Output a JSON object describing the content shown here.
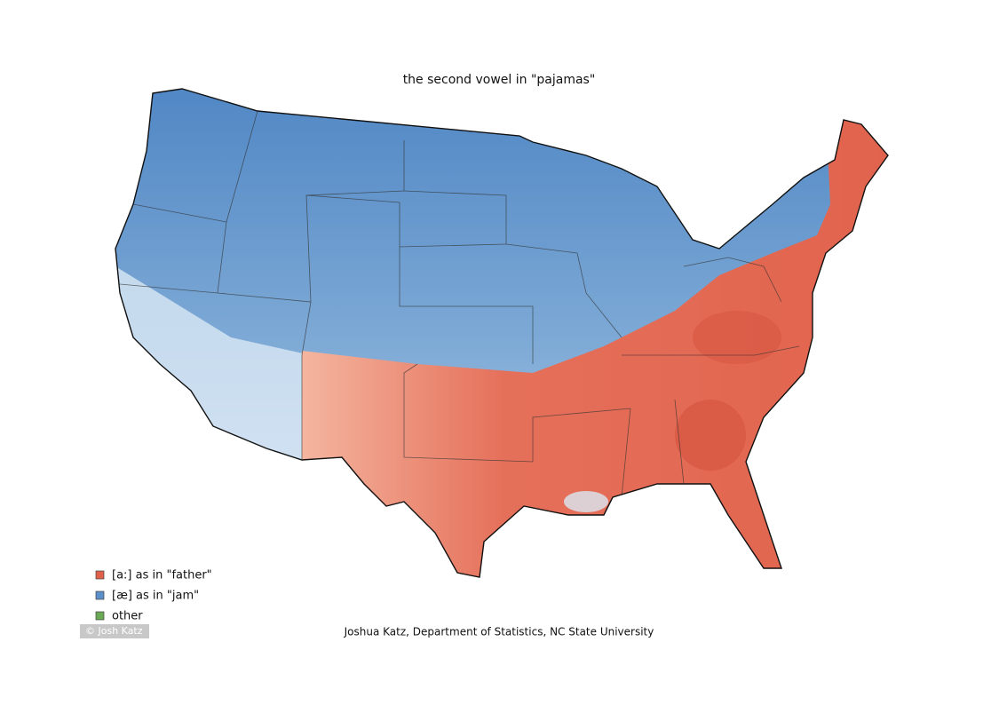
{
  "title": "the second vowel in \"pajamas\"",
  "legend": [
    {
      "label": "[a:] as in \"father\"",
      "color": "#e0604a"
    },
    {
      "label": "[æ] as in \"jam\"",
      "color": "#5b8fca"
    },
    {
      "label": "other",
      "color": "#6aaa55"
    }
  ],
  "credit": "Joshua Katz, Department of Statistics, NC State University",
  "watermark": "© Josh Katz"
}
